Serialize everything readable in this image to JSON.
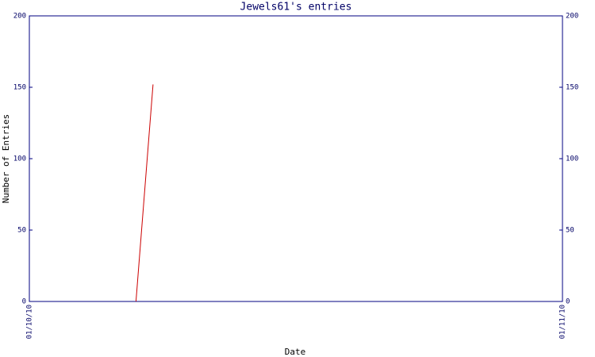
{
  "chart_data": {
    "type": "line",
    "title": "Jewels61's entries",
    "x_label": "Date",
    "y_label": "Number of Entries",
    "x": [
      0.2,
      0.232
    ],
    "series": [
      {
        "name": "Entries",
        "color": "#cc0000",
        "values": [
          0,
          152
        ]
      }
    ],
    "xlim": [
      0,
      1
    ],
    "xticks": [
      {
        "value": 0,
        "label": "01/10/10"
      },
      {
        "value": 1,
        "label": "01/11/10"
      }
    ],
    "ylim": [
      0,
      200
    ],
    "yticks": [
      0,
      50,
      100,
      150,
      200
    ],
    "y2lim": [
      0,
      200
    ],
    "y2ticks": [
      0,
      50,
      100,
      150,
      200
    ]
  }
}
